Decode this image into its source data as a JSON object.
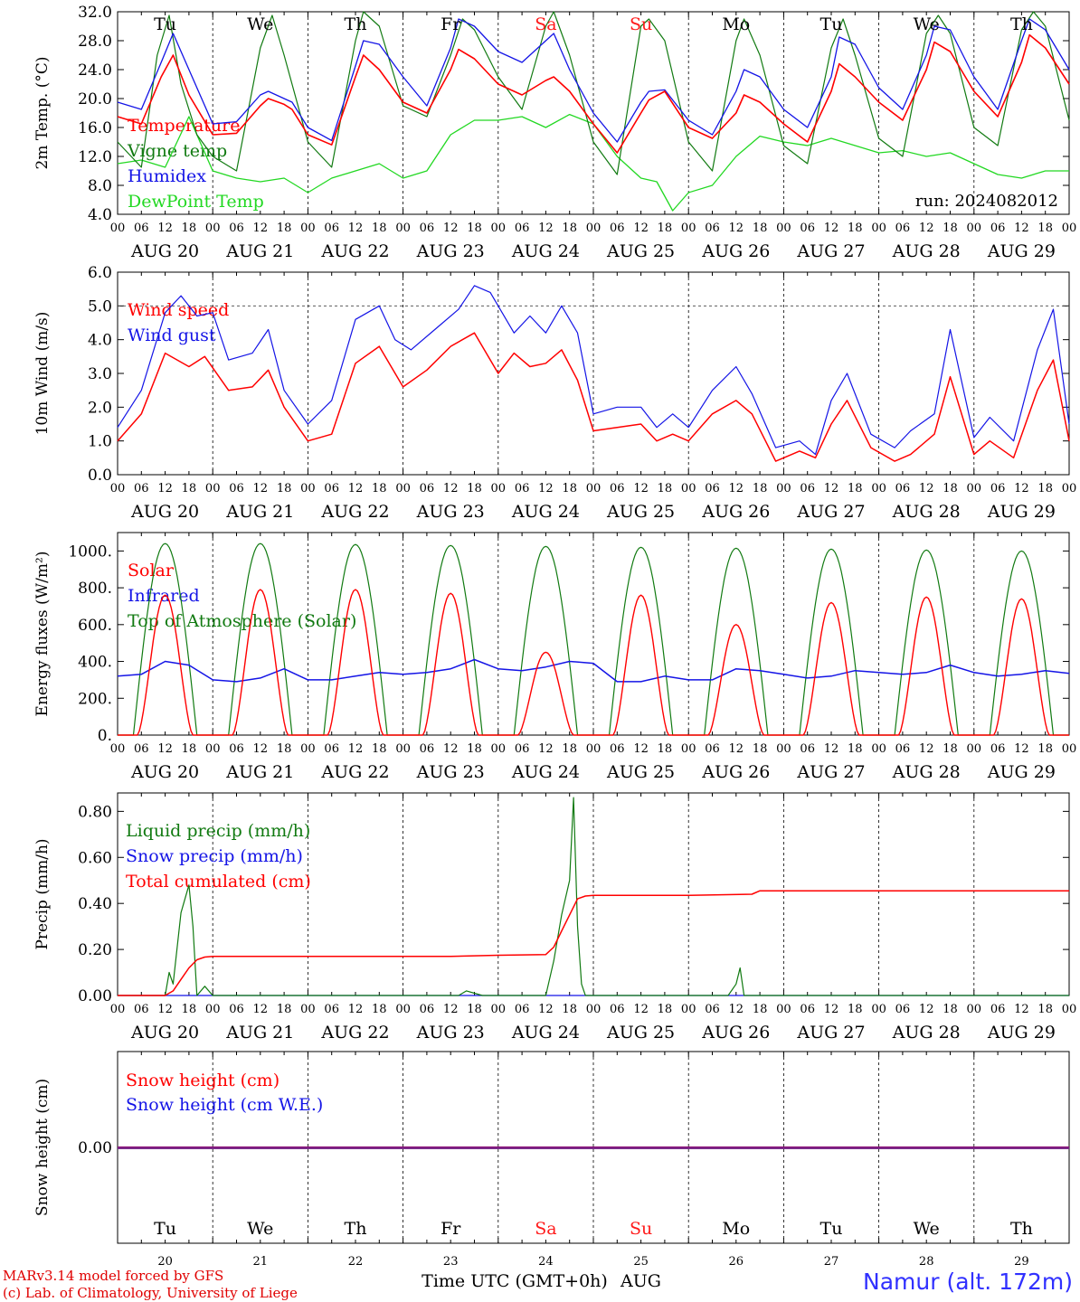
{
  "colors": {
    "red": "#ff0000",
    "green": "#117a11",
    "blue": "#1414e6",
    "lightgreen": "#22d822",
    "weekend": "#ff1a1a",
    "weekday": "#000000",
    "snow": "#7a2a8a"
  },
  "time_axis": {
    "hour_labels": [
      "00",
      "06",
      "12",
      "18"
    ],
    "end_label": "00",
    "dates": [
      "AUG 20",
      "AUG 21",
      "AUG 22",
      "AUG 23",
      "AUG 24",
      "AUG 25",
      "AUG 26",
      "AUG 27",
      "AUG 28",
      "AUG 29"
    ],
    "weekdays": [
      "Tu",
      "We",
      "Th",
      "Fr",
      "Sa",
      "Su",
      "Mo",
      "Tu",
      "We",
      "Th"
    ],
    "weekend_indices": [
      4,
      5
    ],
    "day_numbers": [
      "20",
      "21",
      "22",
      "23",
      "24",
      "25",
      "26",
      "27",
      "28",
      "29"
    ],
    "xlabel": "Time UTC (GMT+0h)",
    "month": "AUG"
  },
  "footer": {
    "model": "MARv3.14 model forced by GFS",
    "credit": "(c) Lab. of Climatology, University of Liege",
    "station": "Namur (alt. 172m)"
  },
  "chart_data": [
    {
      "type": "line",
      "ylabel": "2m Temp. (°C)",
      "ylim": [
        4,
        32
      ],
      "yticks": [
        "4.0",
        "8.0",
        "12.0",
        "16.0",
        "20.0",
        "24.0",
        "28.0",
        "32.0"
      ],
      "annotation": "run: 2024082012",
      "x_unit": "hours since AUG 20 00 UTC",
      "series": [
        {
          "name": "Temperature",
          "color": "red",
          "x": [
            0,
            6,
            11,
            14,
            18,
            24,
            30,
            36,
            38,
            42,
            44,
            48,
            54,
            60,
            62,
            66,
            72,
            78,
            84,
            86,
            90,
            96,
            102,
            108,
            110,
            114,
            120,
            126,
            132,
            134,
            138,
            144,
            150,
            156,
            158,
            162,
            168,
            174,
            180,
            182,
            186,
            192,
            198,
            204,
            206,
            210,
            216,
            222,
            228,
            230,
            234,
            240
          ],
          "values": [
            17.5,
            16.5,
            23.0,
            26.0,
            20.5,
            15.0,
            15.2,
            19.0,
            20.0,
            19.2,
            18.5,
            15.0,
            13.6,
            23.0,
            26.0,
            24.0,
            19.5,
            18.0,
            24.0,
            26.8,
            25.5,
            22.0,
            20.5,
            22.5,
            23.0,
            21.0,
            16.5,
            12.5,
            18.0,
            19.8,
            21.0,
            16.0,
            14.5,
            18.0,
            20.5,
            19.5,
            16.5,
            14.0,
            21.0,
            24.8,
            23.0,
            19.5,
            17.0,
            24.0,
            27.8,
            26.5,
            21.0,
            17.5,
            25.0,
            28.8,
            27.0,
            22.0
          ]
        },
        {
          "name": "Vigne temp",
          "color": "green",
          "x": [
            0,
            6,
            10,
            13,
            16,
            20,
            24,
            30,
            36,
            39,
            42,
            48,
            54,
            60,
            62,
            66,
            72,
            78,
            84,
            87,
            90,
            96,
            102,
            108,
            110,
            114,
            120,
            126,
            132,
            134,
            138,
            144,
            150,
            156,
            158,
            162,
            168,
            174,
            180,
            183,
            186,
            192,
            198,
            204,
            207,
            210,
            216,
            222,
            228,
            231,
            234,
            240
          ],
          "values": [
            14.0,
            10.5,
            26.0,
            31.5,
            22.0,
            15.0,
            12.0,
            10.0,
            27.0,
            31.5,
            26.0,
            14.0,
            10.5,
            28.0,
            33.0,
            30.0,
            19.0,
            17.5,
            26.0,
            31.0,
            29.5,
            23.0,
            18.5,
            30.0,
            32.0,
            26.0,
            14.0,
            9.5,
            30.0,
            31.0,
            28.0,
            14.0,
            10.0,
            28.0,
            31.0,
            26.0,
            13.5,
            11.0,
            27.0,
            31.0,
            26.0,
            14.5,
            12.0,
            29.0,
            31.5,
            29.0,
            16.0,
            13.5,
            29.5,
            32.0,
            30.0,
            17.0
          ]
        },
        {
          "name": "Humidex",
          "color": "blue",
          "x": [
            0,
            6,
            11,
            14,
            18,
            24,
            30,
            36,
            38,
            42,
            44,
            48,
            54,
            60,
            62,
            66,
            72,
            78,
            84,
            86,
            90,
            96,
            102,
            108,
            110,
            114,
            120,
            126,
            132,
            134,
            138,
            144,
            150,
            156,
            158,
            162,
            168,
            174,
            180,
            182,
            186,
            192,
            198,
            204,
            206,
            210,
            216,
            222,
            228,
            230,
            234,
            240
          ],
          "values": [
            19.5,
            18.5,
            25.0,
            29.0,
            24.0,
            16.5,
            16.8,
            20.5,
            21.0,
            20.0,
            19.5,
            16.0,
            14.2,
            24.5,
            28.0,
            27.5,
            23.0,
            19.0,
            27.0,
            31.0,
            30.0,
            26.5,
            25.0,
            28.0,
            29.0,
            24.0,
            18.0,
            14.0,
            19.5,
            21.0,
            21.2,
            17.0,
            15.0,
            21.0,
            24.0,
            23.0,
            18.5,
            16.0,
            23.0,
            28.5,
            27.5,
            21.5,
            18.5,
            26.0,
            30.0,
            29.5,
            23.0,
            18.5,
            28.0,
            31.0,
            29.5,
            24.0
          ]
        },
        {
          "name": "DewPoint Temp",
          "color": "lightgreen",
          "x": [
            0,
            6,
            12,
            18,
            24,
            30,
            36,
            42,
            48,
            54,
            60,
            66,
            72,
            78,
            84,
            90,
            96,
            102,
            108,
            114,
            120,
            126,
            132,
            136,
            140,
            144,
            150,
            156,
            162,
            168,
            174,
            180,
            186,
            192,
            198,
            204,
            210,
            216,
            222,
            228,
            234,
            240
          ],
          "values": [
            11.0,
            11.5,
            10.5,
            17.5,
            10.0,
            9.0,
            8.5,
            9.0,
            7.0,
            9.0,
            10.0,
            11.0,
            9.0,
            10.0,
            15.0,
            17.0,
            17.0,
            17.5,
            16.0,
            17.8,
            16.5,
            12.0,
            9.0,
            8.5,
            4.5,
            7.0,
            8.0,
            12.0,
            14.8,
            14.0,
            13.5,
            14.5,
            13.5,
            12.5,
            12.8,
            12.0,
            12.5,
            11.0,
            9.5,
            9.0,
            10.0,
            10.0
          ]
        }
      ]
    },
    {
      "type": "line",
      "ylabel": "10m Wind (m/s)",
      "ylim": [
        0,
        6
      ],
      "yticks": [
        "0.0",
        "1.0",
        "2.0",
        "3.0",
        "4.0",
        "5.0",
        "6.0"
      ],
      "refline": 5,
      "x_unit": "hours since AUG 20 00 UTC",
      "series": [
        {
          "name": "Wind speed",
          "color": "red",
          "x": [
            0,
            6,
            12,
            18,
            22,
            28,
            34,
            38,
            42,
            48,
            54,
            60,
            66,
            72,
            78,
            84,
            90,
            96,
            100,
            104,
            108,
            112,
            116,
            120,
            126,
            132,
            136,
            140,
            144,
            150,
            156,
            160,
            166,
            172,
            176,
            180,
            184,
            190,
            196,
            200,
            206,
            210,
            216,
            220,
            226,
            232,
            236,
            240
          ],
          "values": [
            1.0,
            1.8,
            3.6,
            3.2,
            3.5,
            2.5,
            2.6,
            3.1,
            2.0,
            1.0,
            1.2,
            3.3,
            3.8,
            2.6,
            3.1,
            3.8,
            4.2,
            3.0,
            3.6,
            3.2,
            3.3,
            3.7,
            2.8,
            1.3,
            1.4,
            1.5,
            1.0,
            1.2,
            1.0,
            1.8,
            2.2,
            1.8,
            0.4,
            0.7,
            0.5,
            1.5,
            2.2,
            0.8,
            0.4,
            0.6,
            1.2,
            2.9,
            0.6,
            1.0,
            0.5,
            2.5,
            3.4,
            1.0
          ]
        },
        {
          "name": "Wind gust",
          "color": "blue",
          "x": [
            0,
            6,
            12,
            16,
            20,
            24,
            28,
            34,
            38,
            42,
            48,
            54,
            60,
            66,
            70,
            74,
            80,
            86,
            90,
            94,
            100,
            104,
            108,
            112,
            116,
            120,
            126,
            132,
            136,
            140,
            144,
            150,
            156,
            160,
            166,
            172,
            176,
            180,
            184,
            190,
            196,
            200,
            206,
            210,
            216,
            220,
            226,
            232,
            236,
            240
          ],
          "values": [
            1.4,
            2.5,
            4.8,
            5.3,
            4.7,
            4.8,
            3.4,
            3.6,
            4.3,
            2.5,
            1.5,
            2.2,
            4.6,
            5.0,
            4.0,
            3.7,
            4.3,
            4.9,
            5.6,
            5.4,
            4.2,
            4.7,
            4.2,
            5.0,
            4.2,
            1.8,
            2.0,
            2.0,
            1.4,
            1.8,
            1.4,
            2.5,
            3.2,
            2.4,
            0.8,
            1.0,
            0.6,
            2.2,
            3.0,
            1.2,
            0.8,
            1.3,
            1.8,
            4.3,
            1.1,
            1.7,
            1.0,
            3.7,
            4.9,
            1.5
          ]
        }
      ]
    },
    {
      "type": "line",
      "ylabel": "Energy fluxes (W/m²)",
      "ylim": [
        0,
        1100
      ],
      "yticks": [
        "0.",
        "200.",
        "400.",
        "600.",
        "800.",
        "1000."
      ],
      "x_unit": "hours since AUG 20 00 UTC",
      "toa_peaks": [
        1040,
        1040,
        1035,
        1030,
        1025,
        1020,
        1015,
        1010,
        1005,
        1000
      ],
      "solar_peaks": [
        760,
        790,
        790,
        770,
        450,
        760,
        600,
        720,
        750,
        740
      ],
      "series": [
        {
          "name": "Solar",
          "color": "red"
        },
        {
          "name": "Infrared",
          "color": "blue",
          "x": [
            0,
            6,
            12,
            18,
            24,
            30,
            36,
            42,
            48,
            54,
            60,
            66,
            72,
            78,
            84,
            90,
            96,
            102,
            108,
            114,
            120,
            126,
            132,
            138,
            144,
            150,
            156,
            162,
            168,
            174,
            180,
            186,
            192,
            198,
            204,
            210,
            216,
            222,
            228,
            234,
            240
          ],
          "values": [
            320,
            330,
            400,
            380,
            300,
            290,
            310,
            360,
            300,
            300,
            320,
            340,
            330,
            340,
            360,
            410,
            360,
            350,
            370,
            400,
            390,
            290,
            290,
            320,
            300,
            300,
            360,
            350,
            330,
            310,
            320,
            350,
            340,
            330,
            340,
            380,
            340,
            320,
            330,
            350,
            335
          ]
        },
        {
          "name": "Top of Atmosphere (Solar)",
          "color": "green"
        }
      ]
    },
    {
      "type": "line",
      "ylabel": "Precip (mm/h)",
      "ylim": [
        0,
        0.88
      ],
      "yticks": [
        "0.00",
        "0.20",
        "0.40",
        "0.60",
        "0.80"
      ],
      "x_unit": "hours since AUG 20 00 UTC",
      "series": [
        {
          "name": "Liquid precip (mm/h)",
          "color": "green",
          "x": [
            0,
            12,
            13,
            14,
            16,
            18,
            19,
            20,
            22,
            24,
            86,
            88,
            90,
            92,
            108,
            110,
            112,
            114,
            115,
            116,
            117,
            118,
            120,
            154,
            156,
            157,
            158,
            240
          ],
          "values": [
            0,
            0,
            0.1,
            0.05,
            0.36,
            0.48,
            0.3,
            0.0,
            0.04,
            0.0,
            0,
            0.02,
            0.01,
            0,
            0,
            0.15,
            0.35,
            0.5,
            0.86,
            0.3,
            0.05,
            0,
            0,
            0,
            0.05,
            0.12,
            0.0,
            0
          ]
        },
        {
          "name": "Snow precip (mm/h)",
          "color": "blue",
          "x": [
            0,
            240
          ],
          "values": [
            0,
            0
          ]
        },
        {
          "name": "Total cumulated (cm)",
          "color": "red",
          "x": [
            0,
            12,
            14,
            16,
            18,
            20,
            22,
            24,
            84,
            96,
            108,
            110,
            112,
            114,
            116,
            118,
            120,
            144,
            160,
            162,
            240
          ],
          "values": [
            0,
            0,
            0.02,
            0.07,
            0.12,
            0.155,
            0.167,
            0.17,
            0.17,
            0.175,
            0.178,
            0.21,
            0.28,
            0.35,
            0.42,
            0.432,
            0.435,
            0.435,
            0.44,
            0.455,
            0.455
          ]
        }
      ]
    },
    {
      "type": "line",
      "ylabel": "Snow height (cm)",
      "ylim": [
        -1,
        1
      ],
      "yticks": [
        "0.00"
      ],
      "x_unit": "hours since AUG 20 00 UTC",
      "series": [
        {
          "name": "Snow height (cm)",
          "color": "red",
          "x": [
            0,
            240
          ],
          "values": [
            0,
            0
          ]
        },
        {
          "name": "Snow height (cm W.E.)",
          "color": "blue",
          "x": [
            0,
            240
          ],
          "values": [
            0,
            0
          ]
        }
      ]
    }
  ]
}
